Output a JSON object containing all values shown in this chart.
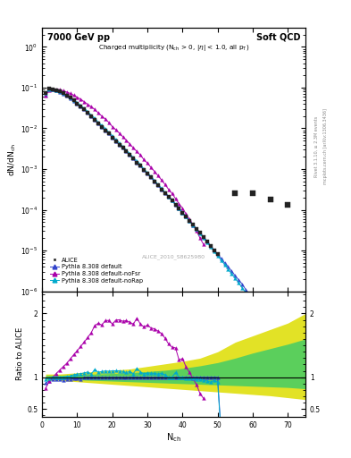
{
  "title_left": "7000 GeV pp",
  "title_right": "Soft QCD",
  "xlabel": "N_{ch}",
  "ylabel_top": "dN/dN_{ch}",
  "ylabel_bottom": "Ratio to ALICE",
  "watermark": "ALICE_2010_S8625980",
  "xlim": [
    0,
    75
  ],
  "colors": {
    "alice": "#222222",
    "default": "#3344cc",
    "nofsr": "#aa00aa",
    "norap": "#00aacc",
    "band_green": "#44cc66",
    "band_yellow": "#dddd00"
  },
  "alice_x": [
    1,
    2,
    3,
    4,
    5,
    6,
    7,
    8,
    9,
    10,
    11,
    12,
    13,
    14,
    15,
    16,
    17,
    18,
    19,
    20,
    21,
    22,
    23,
    24,
    25,
    26,
    27,
    28,
    29,
    30,
    31,
    32,
    33,
    34,
    35,
    36,
    37,
    38,
    39,
    40,
    41,
    42,
    43,
    44,
    45,
    46,
    47,
    48,
    49,
    50,
    55,
    60,
    65,
    70
  ],
  "alice_y": [
    0.075,
    0.093,
    0.092,
    0.087,
    0.08,
    0.072,
    0.064,
    0.056,
    0.048,
    0.041,
    0.035,
    0.029,
    0.024,
    0.02,
    0.016,
    0.013,
    0.011,
    0.009,
    0.0074,
    0.006,
    0.0049,
    0.004,
    0.0033,
    0.0027,
    0.0022,
    0.0018,
    0.0014,
    0.0012,
    0.00095,
    0.00077,
    0.00062,
    0.0005,
    0.0004,
    0.00032,
    0.00026,
    0.00021,
    0.00017,
    0.00013,
    0.00011,
    8.5e-05,
    6.8e-05,
    5.4e-05,
    4.3e-05,
    3.4e-05,
    2.7e-05,
    2.1e-05,
    1.7e-05,
    1.3e-05,
    1e-05,
    8e-06,
    0.00025,
    0.00025,
    0.00018,
    0.00013
  ],
  "pythia_default_x": [
    1,
    2,
    3,
    4,
    5,
    6,
    7,
    8,
    9,
    10,
    11,
    12,
    13,
    14,
    15,
    16,
    17,
    18,
    19,
    20,
    21,
    22,
    23,
    24,
    25,
    26,
    27,
    28,
    29,
    30,
    31,
    32,
    33,
    34,
    35,
    36,
    37,
    38,
    39,
    40,
    41,
    42,
    43,
    44,
    45,
    46,
    47,
    48,
    49,
    50,
    51,
    52,
    53,
    54,
    55,
    56,
    57,
    58,
    59,
    60,
    61,
    62,
    63,
    64,
    65,
    66,
    67,
    68,
    69,
    70,
    71,
    72
  ],
  "pythia_default_y": [
    0.068,
    0.088,
    0.089,
    0.084,
    0.077,
    0.069,
    0.062,
    0.054,
    0.047,
    0.04,
    0.034,
    0.029,
    0.024,
    0.02,
    0.016,
    0.013,
    0.011,
    0.009,
    0.0074,
    0.006,
    0.0049,
    0.004,
    0.0033,
    0.0027,
    0.0022,
    0.0018,
    0.0014,
    0.0012,
    0.00095,
    0.00077,
    0.00062,
    0.0005,
    0.0004,
    0.00032,
    0.00026,
    0.00021,
    0.00017,
    0.00013,
    0.00011,
    8.5e-05,
    6.8e-05,
    5.4e-05,
    4.3e-05,
    3.4e-05,
    2.7e-05,
    2.1e-05,
    1.7e-05,
    1.3e-05,
    1e-05,
    8e-06,
    6.4e-06,
    5e-06,
    4e-06,
    3.1e-06,
    2.4e-06,
    1.9e-06,
    1.5e-06,
    1.1e-06,
    8.5e-07,
    6.6e-07,
    5e-07,
    3.8e-07,
    2.9e-07,
    2.2e-07,
    1.6e-07,
    1.2e-07,
    8.8e-08,
    6.5e-08,
    4.7e-08,
    3.4e-08,
    2.4e-08,
    1.7e-08
  ],
  "pythia_nofsr_x": [
    1,
    2,
    3,
    4,
    5,
    6,
    7,
    8,
    9,
    10,
    11,
    12,
    13,
    14,
    15,
    16,
    17,
    18,
    19,
    20,
    21,
    22,
    23,
    24,
    25,
    26,
    27,
    28,
    29,
    30,
    31,
    32,
    33,
    34,
    35,
    36,
    37,
    38,
    39,
    40,
    41,
    42,
    43,
    44,
    45,
    46
  ],
  "pythia_nofsr_y": [
    0.062,
    0.087,
    0.092,
    0.092,
    0.089,
    0.084,
    0.078,
    0.072,
    0.065,
    0.058,
    0.052,
    0.045,
    0.039,
    0.034,
    0.029,
    0.024,
    0.02,
    0.017,
    0.014,
    0.011,
    0.0093,
    0.0076,
    0.0062,
    0.0051,
    0.0041,
    0.0033,
    0.0027,
    0.0022,
    0.0017,
    0.0014,
    0.0011,
    0.00088,
    0.00069,
    0.00054,
    0.00042,
    0.00032,
    0.00025,
    0.00019,
    0.00014,
    0.00011,
    7.9e-05,
    5.8e-05,
    4.2e-05,
    3e-05,
    2e-05,
    1.4e-05
  ],
  "pythia_norap_x": [
    1,
    2,
    3,
    4,
    5,
    6,
    7,
    8,
    9,
    10,
    11,
    12,
    13,
    14,
    15,
    16,
    17,
    18,
    19,
    20,
    21,
    22,
    23,
    24,
    25,
    26,
    27,
    28,
    29,
    30,
    31,
    32,
    33,
    34,
    35,
    36,
    37,
    38,
    39,
    40,
    41,
    42,
    43,
    44,
    45,
    46,
    47,
    48,
    49,
    50,
    51,
    52,
    53,
    54,
    55,
    56,
    57,
    58,
    59,
    60,
    61,
    62,
    63,
    64,
    65,
    66,
    67,
    68,
    69,
    70,
    71,
    72
  ],
  "pythia_norap_y": [
    0.073,
    0.091,
    0.092,
    0.087,
    0.08,
    0.072,
    0.065,
    0.057,
    0.05,
    0.043,
    0.037,
    0.031,
    0.026,
    0.021,
    0.018,
    0.014,
    0.012,
    0.0099,
    0.0081,
    0.0066,
    0.0054,
    0.0044,
    0.0036,
    0.0029,
    0.0024,
    0.0019,
    0.0016,
    0.0013,
    0.001,
    0.00082,
    0.00066,
    0.00053,
    0.00042,
    0.00034,
    0.00027,
    0.00021,
    0.00017,
    0.00014,
    0.00011,
    8.5e-05,
    6.7e-05,
    5.3e-05,
    4.2e-05,
    3.3e-05,
    2.6e-05,
    2e-05,
    1.6e-05,
    1.2e-05,
    9.5e-06,
    7.4e-06,
    5.8e-06,
    4.5e-06,
    3.5e-06,
    2.7e-06,
    2.1e-06,
    1.6e-06,
    1.2e-06,
    9.4e-07,
    7.2e-07,
    5.5e-07,
    4.2e-07,
    3.2e-07,
    2.4e-07,
    1.8e-07,
    1.4e-07,
    1e-07,
    7.7e-08,
    5.8e-08,
    4.3e-08,
    3.2e-08,
    2.3e-08,
    1.7e-08
  ],
  "band_x": [
    1,
    5,
    10,
    15,
    20,
    25,
    30,
    35,
    40,
    45,
    50,
    55,
    60,
    65,
    70,
    75
  ],
  "band_yellow_lo": [
    0.95,
    0.95,
    0.93,
    0.91,
    0.89,
    0.87,
    0.85,
    0.83,
    0.81,
    0.79,
    0.77,
    0.75,
    0.73,
    0.71,
    0.68,
    0.65
  ],
  "band_yellow_hi": [
    1.05,
    1.05,
    1.07,
    1.09,
    1.11,
    1.13,
    1.17,
    1.21,
    1.25,
    1.3,
    1.4,
    1.55,
    1.65,
    1.75,
    1.85,
    2.0
  ],
  "band_green_lo": [
    0.97,
    0.97,
    0.96,
    0.95,
    0.94,
    0.93,
    0.92,
    0.91,
    0.9,
    0.89,
    0.88,
    0.87,
    0.86,
    0.85,
    0.84,
    0.82
  ],
  "band_green_hi": [
    1.03,
    1.03,
    1.04,
    1.05,
    1.06,
    1.07,
    1.09,
    1.11,
    1.14,
    1.18,
    1.23,
    1.3,
    1.38,
    1.45,
    1.52,
    1.6
  ]
}
